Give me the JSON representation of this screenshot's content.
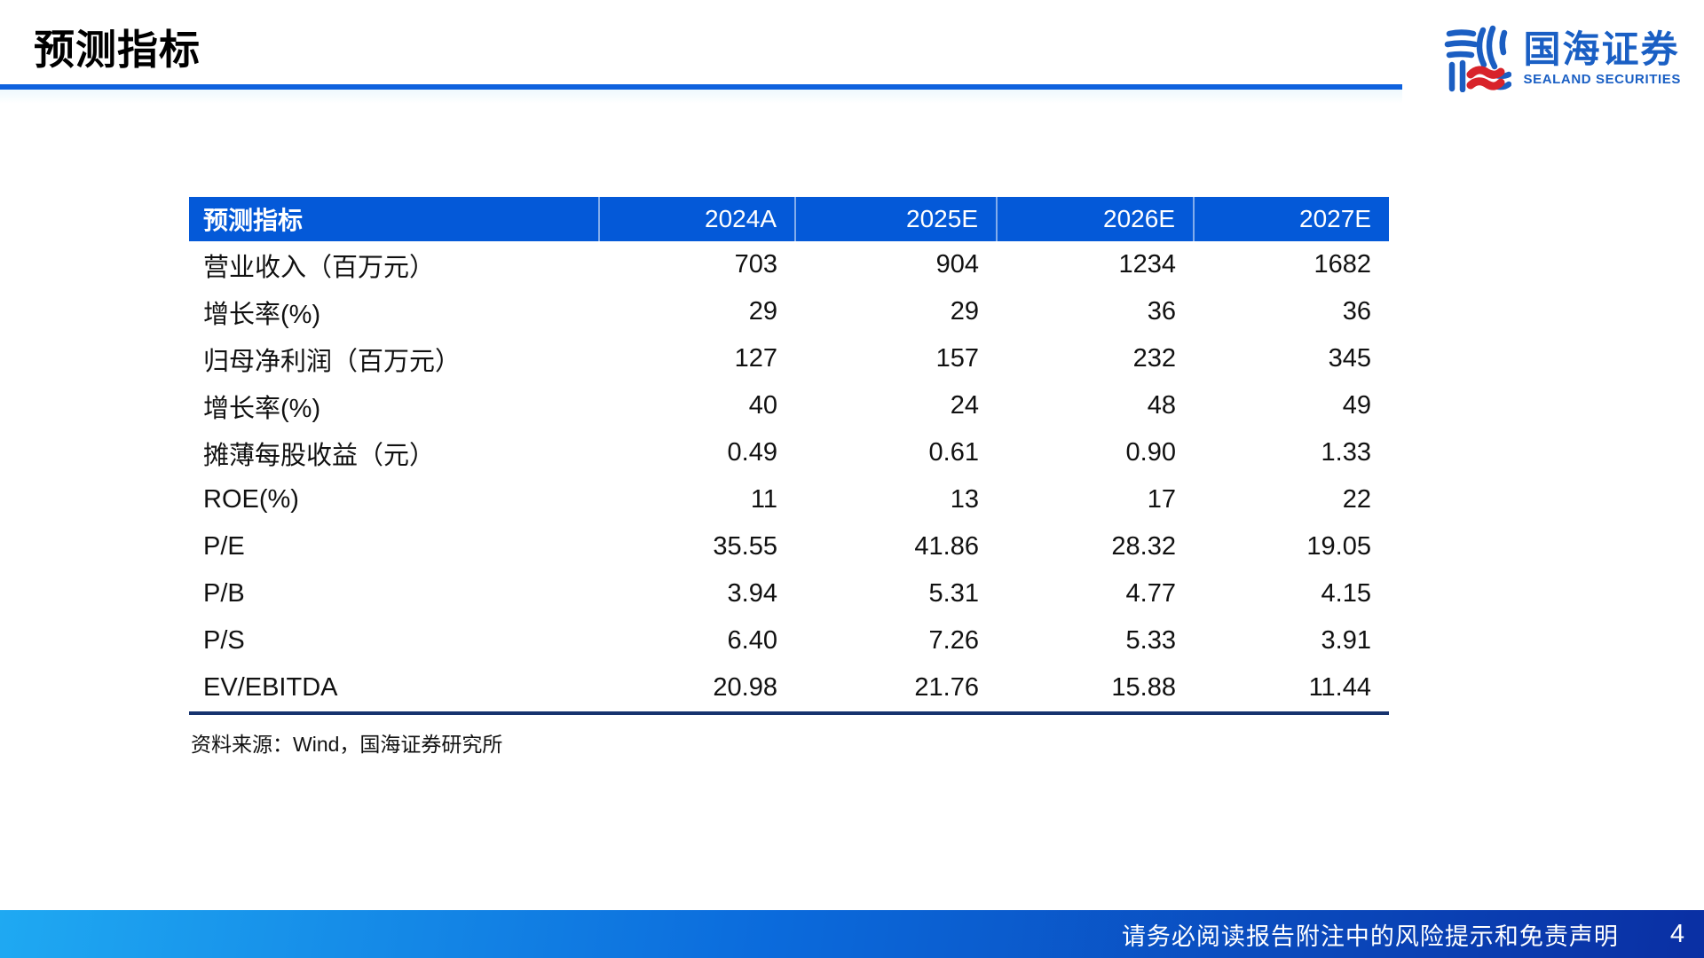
{
  "header": {
    "title": "预测指标"
  },
  "logo": {
    "name_cn": "国海证券",
    "name_en": "SEALAND SECURITIES"
  },
  "main": {
    "table": {
      "columns": [
        "预测指标",
        "2024A",
        "2025E",
        "2026E",
        "2027E"
      ],
      "rows": [
        [
          "营业收入（百万元）",
          "703",
          "904",
          "1234",
          "1682"
        ],
        [
          "增长率(%)",
          "29",
          "29",
          "36",
          "36"
        ],
        [
          "归母净利润（百万元）",
          "127",
          "157",
          "232",
          "345"
        ],
        [
          "增长率(%)",
          "40",
          "24",
          "48",
          "49"
        ],
        [
          "摊薄每股收益（元）",
          "0.49",
          "0.61",
          "0.90",
          "1.33"
        ],
        [
          "ROE(%)",
          "11",
          "13",
          "17",
          "22"
        ],
        [
          "P/E",
          "35.55",
          "41.86",
          "28.32",
          "19.05"
        ],
        [
          "P/B",
          "3.94",
          "5.31",
          "4.77",
          "4.15"
        ],
        [
          "P/S",
          "6.40",
          "7.26",
          "5.33",
          "3.91"
        ],
        [
          "EV/EBITDA",
          "20.98",
          "21.76",
          "15.88",
          "11.44"
        ]
      ]
    },
    "source_note": "资料来源：Wind，国海证券研究所"
  },
  "footer": {
    "disclaimer": "请务必阅读报告附注中的风险提示和免责声明",
    "page_number": "4"
  },
  "colors": {
    "accent_blue": "#0459D8",
    "underline_blue": "#0F62DE",
    "table_bottom_navy": "#16336E",
    "logo_blue": "#1A5FC4",
    "logo_red": "#D8232A"
  }
}
